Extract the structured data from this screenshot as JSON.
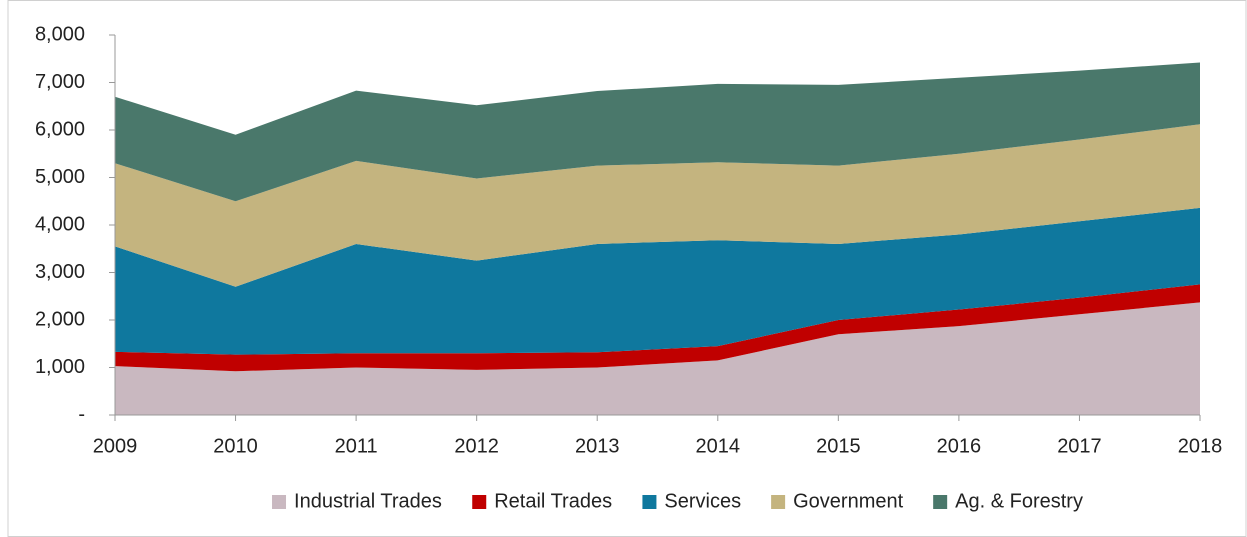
{
  "chart_data": {
    "type": "stacked_area",
    "categories": [
      "2009",
      "2010",
      "2011",
      "2012",
      "2013",
      "2014",
      "2015",
      "2016",
      "2017",
      "2018"
    ],
    "series": [
      {
        "name": "Industrial Trades",
        "color": "#c9b8c0",
        "values": [
          1030,
          920,
          1000,
          950,
          1000,
          1150,
          1700,
          1870,
          2120,
          2370
        ]
      },
      {
        "name": "Retail Trades",
        "color": "#c00000",
        "values": [
          300,
          350,
          300,
          350,
          320,
          300,
          300,
          350,
          350,
          380
        ]
      },
      {
        "name": "Services",
        "color": "#0f789e",
        "values": [
          2220,
          1430,
          2300,
          1950,
          2280,
          2230,
          1600,
          1580,
          1610,
          1610
        ]
      },
      {
        "name": "Government",
        "color": "#c4b47f",
        "values": [
          1750,
          1800,
          1750,
          1730,
          1650,
          1640,
          1650,
          1700,
          1720,
          1760
        ]
      },
      {
        "name": "Ag. & Forestry",
        "color": "#4a786b",
        "values": [
          1400,
          1400,
          1480,
          1540,
          1570,
          1650,
          1700,
          1600,
          1450,
          1300
        ]
      }
    ],
    "ylim": [
      0,
      8000
    ],
    "yticks": [
      {
        "value": 0,
        "label": "-"
      },
      {
        "value": 1000,
        "label": "1,000"
      },
      {
        "value": 2000,
        "label": "2,000"
      },
      {
        "value": 3000,
        "label": "3,000"
      },
      {
        "value": 4000,
        "label": "4,000"
      },
      {
        "value": 5000,
        "label": "5,000"
      },
      {
        "value": 6000,
        "label": "6,000"
      },
      {
        "value": 7000,
        "label": "7,000"
      },
      {
        "value": 8000,
        "label": "8,000"
      }
    ],
    "legend": "bottom"
  }
}
